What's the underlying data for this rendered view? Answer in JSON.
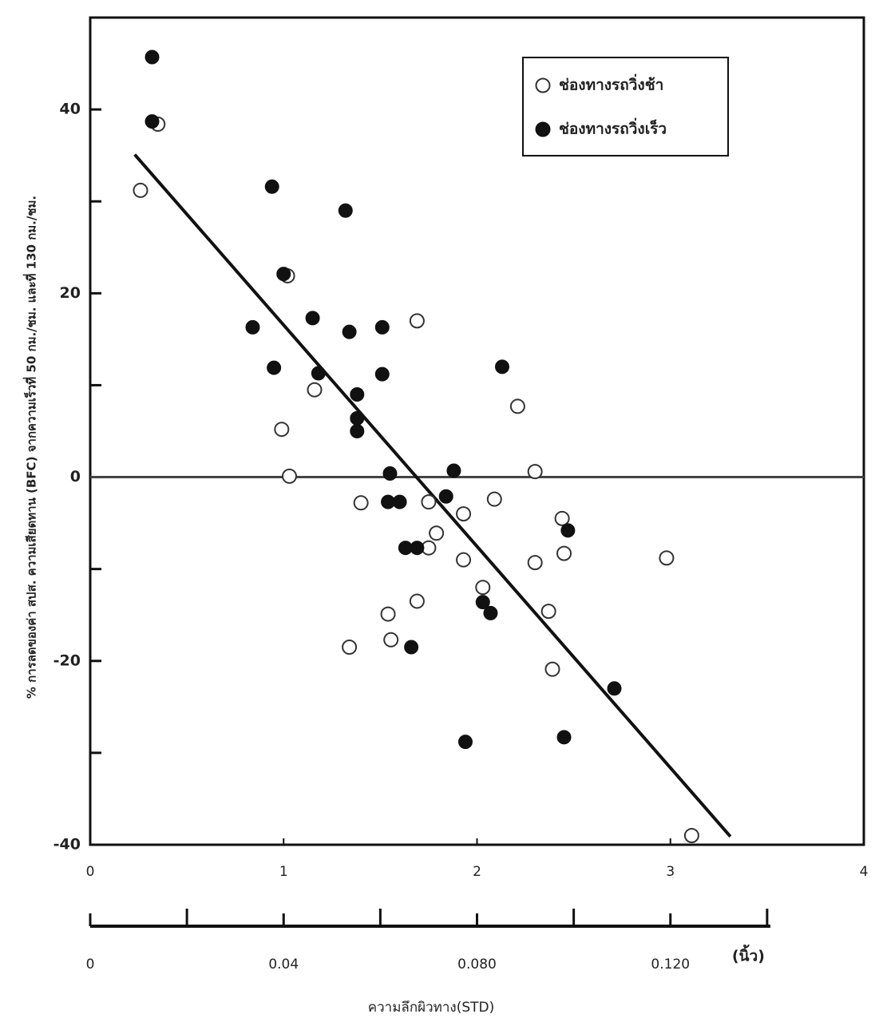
{
  "chart_data": {
    "type": "scatter",
    "y_label": "% การลดของค่า สปส. ความเสียดทาน (BFC) จากความเร็วที่ 50 กม./ชม. และที่ 130 กม./ชม.",
    "x2_label": "ความลึกผิวทาง(STD)",
    "x2_unit": "(นิ้ว)",
    "xlim": [
      0,
      4
    ],
    "xticks": [
      0,
      1,
      2,
      3,
      4
    ],
    "ylim": [
      -40,
      50
    ],
    "yticks": [
      -40,
      -20,
      0,
      20,
      40
    ],
    "minor_yticks": [
      -30,
      -10,
      10,
      30
    ],
    "x2lim": [
      0,
      0.14
    ],
    "x2ticks": [
      0,
      0.04,
      {
        "value": 0.08,
        "label": "0.080"
      },
      {
        "value": 0.12,
        "label": "0.120"
      }
    ],
    "minor_x2ticks": [
      0.02,
      0.06,
      0.1,
      0.14
    ],
    "reference_y": 0,
    "legend": "top-right",
    "series": [
      {
        "name": "ช่องทางรถวิ่งช้า",
        "color": "#333333",
        "marker": "open",
        "x": [
          0.26,
          0.35,
          0.99,
          1.02,
          1.03,
          1.16,
          1.34,
          1.4,
          1.54,
          1.555,
          1.69,
          1.69,
          1.75,
          1.75,
          1.79,
          1.93,
          1.93,
          2.03,
          2.09,
          2.21,
          2.3,
          2.3,
          2.37,
          2.39,
          2.44,
          2.45,
          2.98,
          3.11
        ],
        "values": [
          31.2,
          38.4,
          5.2,
          21.9,
          0.1,
          9.5,
          -18.5,
          -2.8,
          -14.9,
          -17.7,
          17.0,
          -13.5,
          -7.7,
          -2.7,
          -6.1,
          -9.0,
          -4.0,
          -12.0,
          -2.4,
          7.7,
          0.6,
          -9.3,
          -14.6,
          -20.9,
          -4.5,
          -8.3,
          -8.8,
          -39.0
        ]
      },
      {
        "name": "ช่องทางรถวิ่งเร็ว",
        "color": "#111111",
        "marker": "filled",
        "x": [
          0.32,
          0.32,
          0.94,
          0.84,
          0.95,
          1.0,
          1.15,
          1.18,
          1.32,
          1.34,
          1.38,
          1.38,
          1.38,
          1.51,
          1.51,
          1.55,
          1.54,
          1.6,
          1.63,
          1.69,
          1.66,
          1.84,
          1.88,
          1.94,
          2.03,
          2.07,
          2.13,
          2.47,
          2.45,
          2.71
        ],
        "values": [
          45.7,
          38.7,
          31.6,
          16.3,
          11.9,
          22.1,
          17.3,
          11.3,
          29.0,
          15.8,
          9.0,
          6.4,
          5.0,
          16.3,
          11.2,
          0.4,
          -2.7,
          -2.7,
          -7.7,
          -7.7,
          -18.5,
          -2.1,
          0.7,
          -28.8,
          -13.6,
          -14.8,
          12.0,
          -5.8,
          -28.3,
          -23.0
        ]
      }
    ],
    "trend_line": {
      "x": [
        0.23,
        3.31
      ],
      "y": [
        35.1,
        -39.1
      ]
    }
  }
}
